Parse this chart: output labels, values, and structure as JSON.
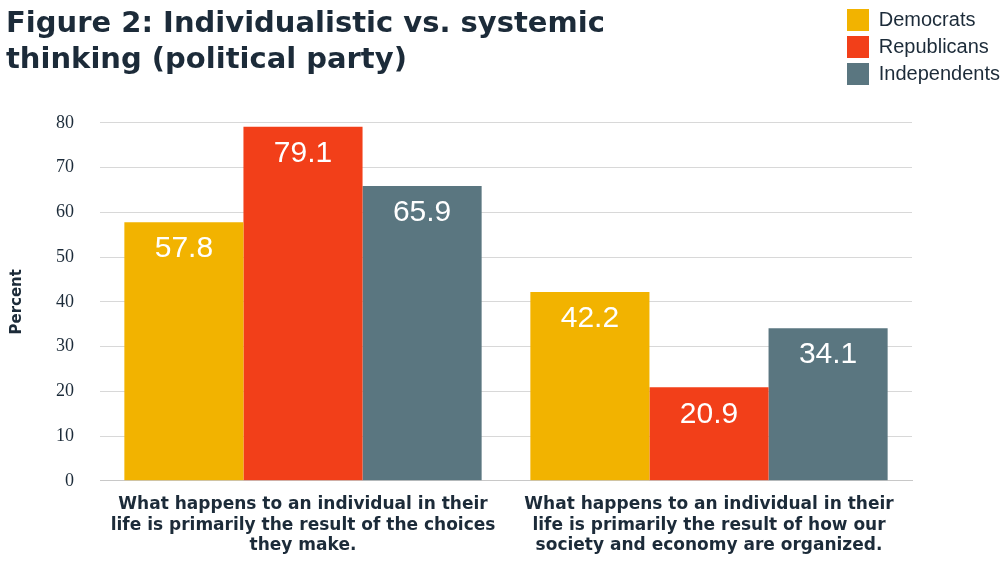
{
  "chart_data": {
    "type": "bar",
    "title": "Figure 2: Individualistic vs. systemic thinking (political party)",
    "ylabel": "Percent",
    "categories": [
      "What happens to an individual in their life is primarily the result of the choices they make.",
      "What happens to an individual in their life is primarily the result of how our society and economy are organized."
    ],
    "series": [
      {
        "name": "Democrats",
        "color": "#f2b300",
        "values": [
          57.8,
          42.2
        ]
      },
      {
        "name": "Republicans",
        "color": "#f23f19",
        "values": [
          79.1,
          20.9
        ]
      },
      {
        "name": "Independents",
        "color": "#5a7680",
        "values": [
          65.9,
          34.1
        ]
      }
    ],
    "ylim": [
      0,
      80
    ],
    "yticks": [
      0,
      10,
      20,
      30,
      40,
      50,
      60,
      70,
      80
    ],
    "grid": "y",
    "legend": "top right",
    "data_labels": true
  }
}
